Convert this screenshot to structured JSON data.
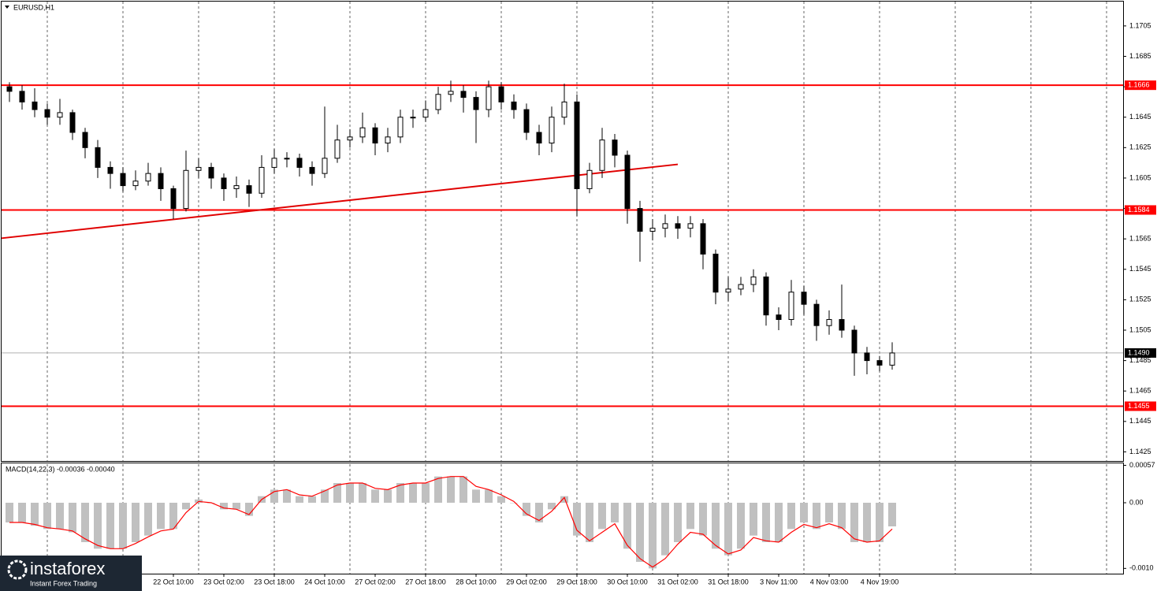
{
  "chart_data": {
    "type": "candlestick",
    "title": "EURUSD,H1",
    "categories": [
      null,
      null,
      null,
      null,
      null,
      null,
      null,
      null,
      null,
      null,
      null,
      null,
      null,
      "22 Oct 10:00",
      null,
      null,
      null,
      "23 Oct 02:00",
      null,
      null,
      null,
      "23 Oct 18:00",
      null,
      null,
      null,
      "24 Oct 10:00",
      null,
      null,
      null,
      "27 Oct 02:00",
      null,
      null,
      null,
      "27 Oct 18:00",
      null,
      null,
      null,
      "28 Oct 10:00",
      null,
      null,
      null,
      "29 Oct 02:00",
      null,
      null,
      null,
      "29 Oct 18:00",
      null,
      null,
      null,
      "30 Oct 10:00",
      null,
      null,
      null,
      "31 Oct 02:00",
      null,
      null,
      null,
      "31 Oct 18:00",
      null,
      null,
      null,
      "3 Nov 11:00",
      null,
      null,
      null,
      "4 Nov 03:00",
      null,
      null,
      null,
      "4 Nov 19:00",
      null
    ],
    "open": [
      1.1665,
      1.1662,
      1.1655,
      1.165,
      1.1645,
      1.1648,
      1.1635,
      1.1625,
      1.1612,
      1.1608,
      1.16,
      1.1603,
      1.1608,
      1.1598,
      1.1585,
      1.161,
      1.1612,
      1.1605,
      1.1598,
      1.16,
      1.1595,
      1.1612,
      1.1618,
      1.1618,
      1.1612,
      1.1608,
      1.1618,
      1.163,
      1.1632,
      1.1638,
      1.1628,
      1.1632,
      1.1645,
      1.1645,
      1.165,
      1.166,
      1.1662,
      1.1658,
      1.165,
      1.1665,
      1.1655,
      1.165,
      1.1635,
      1.1628,
      1.1645,
      1.1655,
      1.1598,
      1.161,
      1.163,
      1.162,
      1.1585,
      1.157,
      1.1572,
      1.1575,
      1.1572,
      1.1575,
      1.1555,
      1.153,
      1.1532,
      1.1535,
      1.154,
      1.1515,
      1.1512,
      1.153,
      1.1522,
      1.1508,
      1.1512,
      1.1505,
      1.149,
      1.1485,
      1.1482
    ],
    "high": [
      1.1668,
      1.1666,
      1.1664,
      1.1654,
      1.1657,
      1.165,
      1.1638,
      1.163,
      1.1616,
      1.1612,
      1.161,
      1.1615,
      1.1612,
      1.16,
      1.1623,
      1.1618,
      1.1615,
      1.1608,
      1.1606,
      1.1604,
      1.162,
      1.1624,
      1.1622,
      1.1621,
      1.1616,
      1.1652,
      1.164,
      1.1637,
      1.1648,
      1.1641,
      1.1638,
      1.165,
      1.165,
      1.1656,
      1.1665,
      1.1669,
      1.1666,
      1.1662,
      1.1669,
      1.1668,
      1.166,
      1.1654,
      1.164,
      1.1652,
      1.1667,
      1.166,
      1.1615,
      1.1638,
      1.1634,
      1.1623,
      1.159,
      1.1578,
      1.1581,
      1.158,
      1.158,
      1.1578,
      1.1558,
      1.154,
      1.154,
      1.1545,
      1.1543,
      1.152,
      1.1538,
      1.1534,
      1.1525,
      1.1518,
      1.1535,
      1.1508,
      1.1494,
      1.1488,
      1.1497
    ],
    "low": [
      1.1655,
      1.165,
      1.1645,
      1.164,
      1.164,
      1.163,
      1.1618,
      1.1605,
      1.1598,
      1.1596,
      1.1597,
      1.16,
      1.159,
      1.1578,
      1.1583,
      1.1605,
      1.1598,
      1.159,
      1.1592,
      1.1586,
      1.1592,
      1.1608,
      1.1612,
      1.1606,
      1.16,
      1.1605,
      1.1615,
      1.1625,
      1.1628,
      1.162,
      1.1622,
      1.1628,
      1.1638,
      1.1642,
      1.1647,
      1.1655,
      1.1648,
      1.1628,
      1.1645,
      1.165,
      1.1644,
      1.163,
      1.162,
      1.1622,
      1.164,
      1.158,
      1.1595,
      1.1605,
      1.1612,
      1.1575,
      1.155,
      1.1564,
      1.1566,
      1.1565,
      1.1566,
      1.1545,
      1.1522,
      1.1524,
      1.1528,
      1.153,
      1.1508,
      1.1505,
      1.1508,
      1.1515,
      1.1498,
      1.1502,
      1.15,
      1.1475,
      1.1476,
      1.1478,
      1.1479
    ],
    "close": [
      1.1662,
      1.1655,
      1.165,
      1.1645,
      1.1648,
      1.1635,
      1.1625,
      1.1612,
      1.1608,
      1.16,
      1.1603,
      1.1608,
      1.1598,
      1.1585,
      1.161,
      1.1612,
      1.1605,
      1.1598,
      1.16,
      1.1595,
      1.1612,
      1.1618,
      1.1618,
      1.1612,
      1.1608,
      1.1618,
      1.163,
      1.1632,
      1.1638,
      1.1628,
      1.1632,
      1.1645,
      1.1645,
      1.165,
      1.166,
      1.1662,
      1.1658,
      1.165,
      1.1665,
      1.1655,
      1.165,
      1.1635,
      1.1628,
      1.1645,
      1.1655,
      1.1598,
      1.161,
      1.163,
      1.162,
      1.1585,
      1.157,
      1.1572,
      1.1575,
      1.1572,
      1.1575,
      1.1555,
      1.153,
      1.1532,
      1.1535,
      1.154,
      1.1515,
      1.1512,
      1.153,
      1.1522,
      1.1508,
      1.1512,
      1.1505,
      1.149,
      1.1485,
      1.1482,
      1.149
    ],
    "up_color": "#ffffff",
    "down_color": "#000000",
    "ylim": [
      1.1419,
      1.1721
    ],
    "yticks": [
      1.1705,
      1.1685,
      1.1665,
      1.1645,
      1.1625,
      1.1605,
      1.1585,
      1.1565,
      1.1545,
      1.1525,
      1.1505,
      1.1485,
      1.1465,
      1.1445,
      1.1425
    ],
    "levels": [
      1.1666,
      1.1584,
      1.1455
    ],
    "level_color": "#ff0000",
    "last_price": {
      "value": 1.149,
      "label": "1.1490"
    },
    "trendline": {
      "from_index": 0,
      "from_value": 1.1566,
      "to_index": 53,
      "to_value": 1.1614,
      "color": "#e00000"
    },
    "macd": {
      "title": "MACD(14,22,3) -0.00036 -0.00040",
      "histogram": [
        -0.0003,
        -0.0003,
        -0.00035,
        -0.0004,
        -0.0004,
        -0.00045,
        -0.0006,
        -0.0007,
        -0.0007,
        -0.0007,
        -0.0006,
        -0.0005,
        -0.0004,
        -0.0004,
        -0.0001,
        5e-05,
        0,
        -0.0001,
        -0.0001,
        -0.0002,
        0.0001,
        0.0002,
        0.0002,
        0.0001,
        0.0001,
        0.0002,
        0.0003,
        0.0003,
        0.0003,
        0.0002,
        0.0002,
        0.0003,
        0.0003,
        0.0003,
        0.0004,
        0.0004,
        0.0004,
        0.0002,
        0.0002,
        0.0001,
        0,
        -0.0002,
        -0.0003,
        -0.0001,
        0.0001,
        -0.0005,
        -0.0006,
        -0.0004,
        -0.0003,
        -0.0007,
        -0.0009,
        -0.001,
        -0.0008,
        -0.0006,
        -0.0004,
        -0.0005,
        -0.0007,
        -0.0008,
        -0.0007,
        -0.0005,
        -0.0006,
        -0.0006,
        -0.0004,
        -0.0003,
        -0.0004,
        -0.0003,
        -0.0004,
        -0.0006,
        -0.0006,
        -0.0006,
        -0.00036
      ],
      "signal": [
        -0.0003,
        -0.0003,
        -0.00033,
        -0.00038,
        -0.0004,
        -0.00043,
        -0.00055,
        -0.00065,
        -0.0007,
        -0.0007,
        -0.00062,
        -0.00052,
        -0.00043,
        -0.0004,
        -0.00015,
        2e-05,
        0,
        -8e-05,
        -0.0001,
        -0.00018,
        5e-05,
        0.00017,
        0.0002,
        0.00012,
        0.0001,
        0.00018,
        0.00027,
        0.0003,
        0.0003,
        0.00022,
        0.0002,
        0.00027,
        0.0003,
        0.0003,
        0.00037,
        0.0004,
        0.0004,
        0.00025,
        0.0002,
        0.00012,
        2e-05,
        -0.00017,
        -0.00027,
        -0.00013,
        8e-05,
        -0.00042,
        -0.00058,
        -0.00045,
        -0.00032,
        -0.00065,
        -0.00085,
        -0.00098,
        -0.00085,
        -0.00063,
        -0.00045,
        -0.00048,
        -0.00065,
        -0.00078,
        -0.00072,
        -0.00053,
        -0.00058,
        -0.0006,
        -0.00045,
        -0.00033,
        -0.00038,
        -0.00032,
        -0.00038,
        -0.00055,
        -0.0006,
        -0.00058,
        -0.0004
      ],
      "histogram_color": "#c0c0c0",
      "signal_color": "#ff0000",
      "ylim": [
        -0.00108,
        0.0006
      ],
      "yticks": [
        0.00057,
        {
          "value": 0,
          "label": "0.00"
        },
        {
          "value": -0.001,
          "label": "-0.0010"
        }
      ]
    }
  },
  "watermark": {
    "brand": "instaforex",
    "tagline": "Instant Forex Trading"
  }
}
